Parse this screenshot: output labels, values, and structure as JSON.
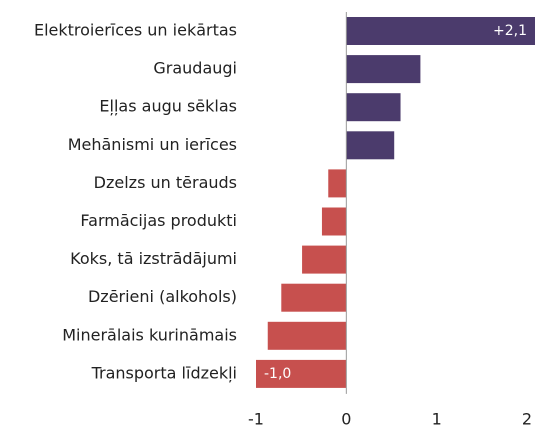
{
  "chart_data": {
    "type": "hbar",
    "categories": [
      "Elektroierīces un iekārtas",
      "Graudaugi",
      "Eļļas augu sēklas",
      "Mehānismi un ierīces",
      "Dzelzs un tērauds",
      "Farmācijas produkti",
      "Koks, tā izstrādājumi",
      "Dzērieni (alkohols)",
      "Minerālais kurināmais",
      "Transporta līdzekļi"
    ],
    "values": [
      2.1,
      0.82,
      0.6,
      0.53,
      -0.2,
      -0.27,
      -0.49,
      -0.72,
      -0.87,
      -1.0
    ],
    "value_labels": [
      "+2,1",
      null,
      null,
      null,
      null,
      null,
      null,
      null,
      null,
      "-1,0"
    ],
    "positive_color": "#4b3b6c",
    "negative_color": "#c7504e",
    "xlim": [
      -1,
      2
    ],
    "xticks": [
      -1,
      0,
      1,
      2
    ]
  }
}
